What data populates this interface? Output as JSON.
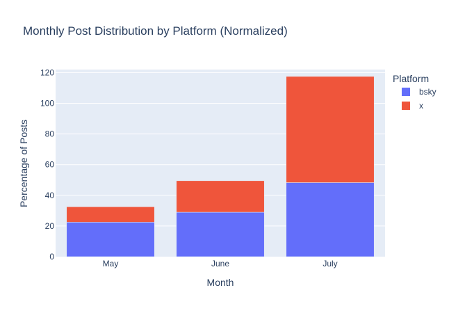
{
  "chart_data": {
    "type": "bar",
    "stacked": true,
    "title": "Monthly Post Distribution by Platform (Normalized)",
    "xlabel": "Month",
    "ylabel": "Percentage of Posts",
    "categories": [
      "May",
      "June",
      "July"
    ],
    "series": [
      {
        "name": "bsky",
        "color": "#636efa",
        "values": [
          22.5,
          29,
          48.3
        ]
      },
      {
        "name": "x",
        "color": "#ef553b",
        "values": [
          10,
          20.5,
          69.2
        ]
      }
    ],
    "ylim": [
      0,
      122
    ],
    "yticks": [
      0,
      20,
      40,
      60,
      80,
      100,
      120
    ],
    "grid": true,
    "plot_background": "#e5ecf6",
    "legend": {
      "title": "Platform",
      "placement": "top-right"
    }
  }
}
